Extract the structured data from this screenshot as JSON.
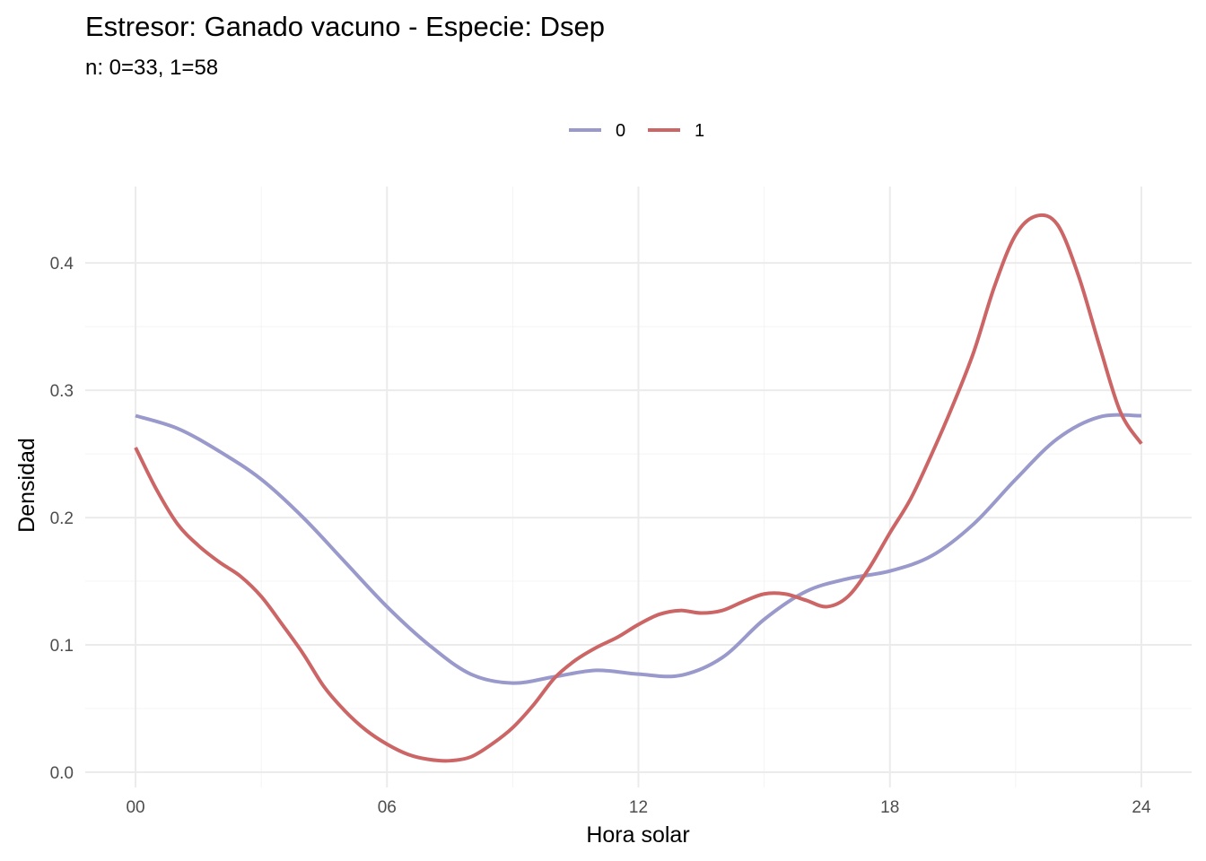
{
  "chart_data": {
    "type": "line",
    "title": "Estresor: Ganado vacuno - Especie:  Dsep",
    "subtitle": "n:  0=33, 1=58",
    "xlabel": "Hora solar",
    "ylabel": "Densidad",
    "xlim": [
      -1.2,
      25.2
    ],
    "ylim": [
      -0.012,
      0.46
    ],
    "x_ticks": [
      0,
      6,
      12,
      18,
      24
    ],
    "x_tick_labels": [
      "00",
      "06",
      "12",
      "18",
      "24"
    ],
    "y_ticks": [
      0,
      0.1,
      0.2,
      0.3,
      0.4
    ],
    "y_tick_labels": [
      "0.0",
      "0.1",
      "0.2",
      "0.3",
      "0.4"
    ],
    "grid": true,
    "legend_position": "top",
    "series": [
      {
        "name": "0",
        "color": "#9999cc",
        "x": [
          0,
          1,
          2,
          3,
          4,
          5,
          6,
          7,
          8,
          9,
          10,
          11,
          12,
          13,
          14,
          15,
          16,
          17,
          18,
          19,
          20,
          21,
          22,
          23,
          24
        ],
        "y": [
          0.28,
          0.27,
          0.252,
          0.23,
          0.2,
          0.165,
          0.13,
          0.1,
          0.077,
          0.07,
          0.075,
          0.08,
          0.077,
          0.076,
          0.09,
          0.12,
          0.142,
          0.152,
          0.158,
          0.17,
          0.195,
          0.23,
          0.262,
          0.279,
          0.28
        ]
      },
      {
        "name": "1",
        "color": "#cc6666",
        "x": [
          0,
          0.5,
          1,
          1.5,
          2,
          2.5,
          3,
          3.5,
          4,
          4.5,
          5,
          5.5,
          6,
          6.5,
          7,
          7.5,
          8,
          8.5,
          9,
          9.5,
          10,
          10.5,
          11,
          11.5,
          12,
          12.5,
          13,
          13.5,
          14,
          14.5,
          15,
          15.5,
          16,
          16.5,
          17,
          17.5,
          18,
          18.5,
          19,
          19.5,
          20,
          20.5,
          21,
          21.5,
          22,
          22.5,
          23,
          23.5,
          24
        ],
        "y": [
          0.255,
          0.222,
          0.195,
          0.178,
          0.165,
          0.154,
          0.138,
          0.116,
          0.093,
          0.067,
          0.048,
          0.033,
          0.022,
          0.014,
          0.01,
          0.009,
          0.012,
          0.022,
          0.035,
          0.053,
          0.074,
          0.088,
          0.098,
          0.106,
          0.116,
          0.124,
          0.127,
          0.125,
          0.127,
          0.134,
          0.14,
          0.14,
          0.135,
          0.13,
          0.138,
          0.16,
          0.188,
          0.215,
          0.25,
          0.288,
          0.33,
          0.382,
          0.422,
          0.437,
          0.43,
          0.39,
          0.335,
          0.283,
          0.258
        ]
      }
    ]
  }
}
